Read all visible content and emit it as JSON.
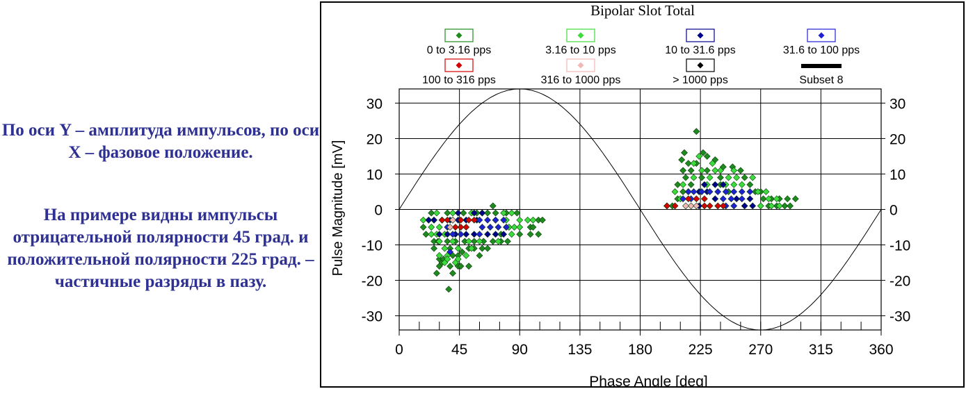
{
  "captions": {
    "paragraph_1": "По оси Y – амплитуда импульсов, по оси X – фазовое положение.",
    "paragraph_2": "На примере видны импульсы отрицательной полярности 45 град. и положительной полярности 225 град. – частичные разряды в пазу."
  },
  "chart_data": {
    "type": "scatter",
    "title": "Bipolar Slot Total",
    "xlabel": "Phase Angle [deg]",
    "ylabel": "Pulse Magnitude [mV]",
    "xlim": [
      0,
      360
    ],
    "ylim": [
      -34,
      34
    ],
    "x_ticks": [
      0,
      45,
      90,
      135,
      180,
      225,
      270,
      315,
      360
    ],
    "y_ticks": [
      30,
      20,
      10,
      0,
      -10,
      -20,
      -30
    ],
    "grid": true,
    "legend_position": "top",
    "reference_curve": {
      "name": "Subset 8",
      "type": "sine",
      "amplitude": 34,
      "period_deg": 360,
      "color": "#000000"
    },
    "series": [
      {
        "name": "0 to 3.16 pps",
        "color": "#1f8a1f",
        "points": [
          [
            37,
            -22.5
          ],
          [
            28,
            -18
          ],
          [
            30,
            -16
          ],
          [
            32,
            -15
          ],
          [
            38,
            -16
          ],
          [
            44,
            -16
          ],
          [
            46,
            -16
          ],
          [
            30,
            -14
          ],
          [
            33,
            -14
          ],
          [
            40,
            -13
          ],
          [
            44,
            -13
          ],
          [
            47,
            -12
          ],
          [
            52,
            -11
          ],
          [
            56,
            -11
          ],
          [
            62,
            -11
          ],
          [
            66,
            -11
          ],
          [
            26,
            -9
          ],
          [
            29,
            -9
          ],
          [
            36,
            -9
          ],
          [
            42,
            -9
          ],
          [
            49,
            -9
          ],
          [
            56,
            -9
          ],
          [
            63,
            -9
          ],
          [
            70,
            -9
          ],
          [
            76,
            -9
          ],
          [
            81,
            -9
          ],
          [
            90,
            -7
          ],
          [
            98,
            -7
          ],
          [
            104,
            -7
          ],
          [
            98,
            -5
          ],
          [
            100,
            -5
          ],
          [
            104,
            -3
          ],
          [
            107,
            -3
          ],
          [
            70,
            1
          ],
          [
            24,
            -1
          ],
          [
            36,
            -1
          ],
          [
            48,
            -1
          ],
          [
            58,
            -1
          ],
          [
            66,
            -1
          ],
          [
            72,
            -1
          ],
          [
            80,
            -1
          ],
          [
            88,
            -1
          ],
          [
            18,
            -5
          ],
          [
            20,
            -7
          ],
          [
            22,
            -3
          ],
          [
            26,
            -11
          ],
          [
            38,
            -11
          ],
          [
            60,
            -13
          ],
          [
            80,
            -5
          ],
          [
            76,
            -7
          ],
          [
            40,
            -18
          ],
          [
            52,
            -16
          ],
          [
            222,
            22
          ],
          [
            213,
            16
          ],
          [
            227,
            16
          ],
          [
            230,
            15
          ],
          [
            236,
            14
          ],
          [
            249,
            12
          ],
          [
            211,
            14
          ],
          [
            216,
            13
          ],
          [
            222,
            13
          ],
          [
            242,
            12
          ],
          [
            255,
            11
          ],
          [
            212,
            11
          ],
          [
            218,
            11
          ],
          [
            226,
            9
          ],
          [
            240,
            9
          ],
          [
            258,
            9
          ],
          [
            208,
            7
          ],
          [
            218,
            7
          ],
          [
            240,
            7
          ],
          [
            262,
            7
          ],
          [
            266,
            5
          ],
          [
            270,
            5
          ],
          [
            272,
            3
          ],
          [
            278,
            3
          ],
          [
            284,
            3
          ],
          [
            290,
            3
          ],
          [
            296,
            3
          ],
          [
            282,
            1
          ],
          [
            288,
            1
          ],
          [
            204,
            1
          ],
          [
            276,
            1
          ],
          [
            292,
            1
          ],
          [
            212,
            5
          ],
          [
            208,
            3
          ],
          [
            214,
            9
          ],
          [
            230,
            11
          ],
          [
            246,
            5
          ]
        ]
      },
      {
        "name": "3.16 to 10 pps",
        "color": "#3ddc3d",
        "points": [
          [
            18,
            -3
          ],
          [
            28,
            -1
          ],
          [
            40,
            -1
          ],
          [
            54,
            -1
          ],
          [
            62,
            -1
          ],
          [
            78,
            -1
          ],
          [
            84,
            -1
          ],
          [
            72,
            -3
          ],
          [
            80,
            -3
          ],
          [
            90,
            -3
          ],
          [
            96,
            -3
          ],
          [
            100,
            -3
          ],
          [
            24,
            -5
          ],
          [
            30,
            -5
          ],
          [
            82,
            -5
          ],
          [
            86,
            -5
          ],
          [
            90,
            -5
          ],
          [
            24,
            -7
          ],
          [
            28,
            -7
          ],
          [
            34,
            -7
          ],
          [
            84,
            -7
          ],
          [
            30,
            -9
          ],
          [
            40,
            -9
          ],
          [
            52,
            -9
          ],
          [
            60,
            -9
          ],
          [
            74,
            -9
          ],
          [
            34,
            -11
          ],
          [
            44,
            -11
          ],
          [
            54,
            -11
          ],
          [
            30,
            -13
          ],
          [
            36,
            -13
          ],
          [
            50,
            -13
          ],
          [
            34,
            -15
          ],
          [
            42,
            -15
          ],
          [
            36,
            -14
          ],
          [
            44,
            -14
          ],
          [
            26,
            -3
          ],
          [
            32,
            -3
          ],
          [
            220,
            13
          ],
          [
            234,
            13
          ],
          [
            240,
            11
          ],
          [
            250,
            11
          ],
          [
            226,
            11
          ],
          [
            232,
            9
          ],
          [
            246,
            9
          ],
          [
            252,
            9
          ],
          [
            220,
            9
          ],
          [
            212,
            7
          ],
          [
            230,
            7
          ],
          [
            244,
            7
          ],
          [
            250,
            7
          ],
          [
            256,
            7
          ],
          [
            268,
            5
          ],
          [
            274,
            5
          ],
          [
            206,
            5
          ],
          [
            216,
            5
          ],
          [
            276,
            3
          ],
          [
            282,
            3
          ],
          [
            284,
            1
          ],
          [
            270,
            1
          ],
          [
            278,
            1
          ],
          [
            200,
            1
          ],
          [
            210,
            3
          ],
          [
            224,
            15
          ],
          [
            236,
            11
          ],
          [
            264,
            9
          ]
        ]
      },
      {
        "name": "10 to 31.6 pps",
        "color": "#00008b",
        "points": [
          [
            26,
            -3
          ],
          [
            32,
            -3
          ],
          [
            38,
            -3
          ],
          [
            44,
            -3
          ],
          [
            50,
            -3
          ],
          [
            56,
            -1
          ],
          [
            62,
            -1
          ],
          [
            30,
            -7
          ],
          [
            36,
            -7
          ],
          [
            42,
            -7
          ],
          [
            50,
            -7
          ],
          [
            56,
            -7
          ],
          [
            66,
            -7
          ],
          [
            72,
            -7
          ],
          [
            78,
            -7
          ],
          [
            22,
            -3
          ],
          [
            58,
            -3
          ],
          [
            44,
            -1
          ],
          [
            228,
            7
          ],
          [
            236,
            7
          ],
          [
            242,
            7
          ],
          [
            224,
            5
          ],
          [
            236,
            3
          ],
          [
            252,
            3
          ],
          [
            262,
            3
          ],
          [
            258,
            1
          ],
          [
            264,
            1
          ],
          [
            224,
            1
          ],
          [
            230,
            5
          ]
        ]
      },
      {
        "name": "31.6 to 100 pps",
        "color": "#1f1fd6",
        "points": [
          [
            62,
            -5
          ],
          [
            68,
            -5
          ],
          [
            74,
            -5
          ],
          [
            80,
            -5
          ],
          [
            66,
            -3
          ],
          [
            72,
            -3
          ],
          [
            78,
            -3
          ],
          [
            60,
            -3
          ],
          [
            40,
            -7
          ],
          [
            46,
            -7
          ],
          [
            60,
            -7
          ],
          [
            38,
            -12
          ],
          [
            36,
            -5
          ],
          [
            216,
            5
          ],
          [
            220,
            5
          ],
          [
            226,
            5
          ],
          [
            232,
            5
          ],
          [
            238,
            5
          ],
          [
            244,
            5
          ],
          [
            250,
            5
          ],
          [
            256,
            5
          ],
          [
            262,
            5
          ],
          [
            212,
            3
          ],
          [
            218,
            3
          ],
          [
            242,
            3
          ],
          [
            248,
            3
          ],
          [
            256,
            3
          ],
          [
            244,
            1
          ],
          [
            250,
            1
          ]
        ]
      },
      {
        "name": "100 to 316 pps",
        "color": "#d40000",
        "points": [
          [
            32,
            -3
          ],
          [
            36,
            -3
          ],
          [
            40,
            -3
          ],
          [
            46,
            -3
          ],
          [
            52,
            -3
          ],
          [
            56,
            -3
          ],
          [
            42,
            -5
          ],
          [
            46,
            -5
          ],
          [
            50,
            -5
          ],
          [
            216,
            3
          ],
          [
            222,
            3
          ],
          [
            228,
            3
          ],
          [
            200,
            1
          ],
          [
            206,
            1
          ],
          [
            228,
            1
          ],
          [
            232,
            1
          ],
          [
            238,
            1
          ],
          [
            242,
            1
          ]
        ]
      },
      {
        "name": "316 to 1000 pps",
        "color": "#f2b6b6",
        "points": [
          [
            38,
            -5
          ],
          [
            40,
            -3
          ],
          [
            218,
            1
          ],
          [
            222,
            1
          ],
          [
            214,
            1
          ]
        ]
      },
      {
        "name": "> 1000 pps",
        "color": "#000000",
        "points": []
      }
    ],
    "legend": [
      {
        "label": "0 to 3.16 pps",
        "color": "#1f8a1f",
        "kind": "marker"
      },
      {
        "label": "3.16 to 10 pps",
        "color": "#3ddc3d",
        "kind": "marker"
      },
      {
        "label": "10 to 31.6 pps",
        "color": "#00008b",
        "kind": "marker"
      },
      {
        "label": "31.6 to 100 pps",
        "color": "#1f1fd6",
        "kind": "marker"
      },
      {
        "label": "100 to 316 pps",
        "color": "#d40000",
        "kind": "marker"
      },
      {
        "label": "316 to 1000 pps",
        "color": "#f2b6b6",
        "kind": "marker"
      },
      {
        "label": "> 1000 pps",
        "color": "#000000",
        "kind": "marker"
      },
      {
        "label": "Subset 8",
        "color": "#000000",
        "kind": "line"
      }
    ]
  }
}
